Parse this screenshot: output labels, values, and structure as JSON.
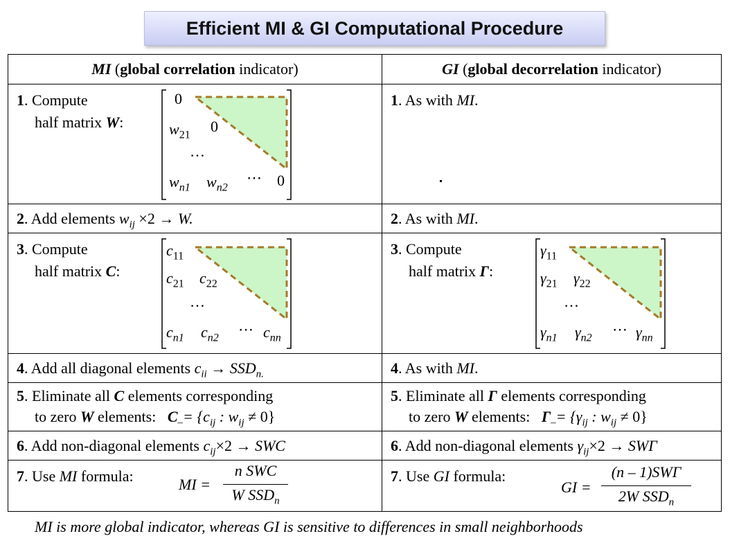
{
  "title": "Efficient MI & GI Computational Procedure",
  "headers": {
    "mi_abbr": "MI",
    "mi_open": " (",
    "mi_bold": "global correlation",
    "mi_rest": " indicator)",
    "gi_abbr": "GI",
    "gi_open": " (",
    "gi_bold": "global decorrelation",
    "gi_rest": " indicator)"
  },
  "steps": {
    "s1_mi_num": "1",
    "s1_mi_a": ". Compute",
    "s1_mi_b": "half matrix ",
    "s1_mi_sym": "W",
    "s1_mi_colon": ":",
    "s1_gi": ". As with ",
    "s1_gi_ref": "MI",
    "s1_gi_end": ".",
    "s2_mi": ". Add elements ",
    "s2_mi_w": "w",
    "s2_mi_sub": "ij",
    "s2_mi_end": " ×2 → ",
    "s2_mi_res": "W.",
    "s2_gi": ". As with ",
    "s2_gi_ref": "MI",
    "s2_gi_end": ".",
    "s3_mi_a": ". Compute",
    "s3_mi_b": "half matrix ",
    "s3_mi_sym": "C",
    "s3_mi_colon": ":",
    "s3_gi_a": ". Compute",
    "s3_gi_b": "half matrix ",
    "s3_gi_sym": "Γ",
    "s3_gi_colon": ":",
    "s4_mi": ". Add all diagonal elements ",
    "s4_mi_c": "c",
    "s4_mi_sub": "ii",
    "s4_mi_arrow": " → ",
    "s4_mi_ssd": "SSD",
    "s4_mi_ssd_sub": "n.",
    "s4_gi": ". As with ",
    "s4_gi_ref": "MI",
    "s4_gi_end": ".",
    "s5_mi_a": ". Eliminate all ",
    "s5_mi_sym": "C",
    "s5_mi_a2": " elements  corresponding",
    "s5_mi_b": "to zero ",
    "s5_mi_w": "W",
    "s5_mi_b2": " elements:",
    "s5_mi_eq": "= {c",
    "s5_mi_eq_sub": "ij",
    "s5_mi_eq2": " : w",
    "s5_mi_eq2_sub": "ij",
    "s5_mi_eq3": " ≠ 0}",
    "s5_mi_c": "C",
    "s5_mi_c_sub": "–",
    "s5_gi_a": ". Eliminate all ",
    "s5_gi_sym": "Γ",
    "s5_gi_a2": " elements  corresponding",
    "s5_gi_b": "to zero ",
    "s5_gi_w": "W",
    "s5_gi_b2": " elements:",
    "s5_gi_g": "Γ",
    "s5_gi_g_sub": "–",
    "s5_gi_eq": "= {γ",
    "s5_gi_eq_sub": "ij",
    "s5_gi_eq2": " : w",
    "s5_gi_eq2_sub": "ij",
    "s5_gi_eq3": " ≠ 0}",
    "s6_mi": ". Add non-diagonal elements ",
    "s6_mi_c": "c",
    "s6_mi_sub": "ij",
    "s6_mi_end": "×2 → ",
    "s6_mi_res": "SWC",
    "s6_gi": ". Add non-diagonal elements ",
    "s6_gi_g": "γ",
    "s6_gi_sub": "ij",
    "s6_gi_end": "×2 → ",
    "s6_gi_res": "SWΓ",
    "s7_mi": ". Use ",
    "s7_mi_ref": "MI",
    "s7_mi_end": " formula:",
    "s7_mi_lhs": "MI =",
    "s7_mi_num": "n SWC",
    "s7_mi_den": "W SSD",
    "s7_mi_den_sub": "n",
    "s7_gi": ". Use ",
    "s7_gi_ref": "GI",
    "s7_gi_end": " formula:",
    "s7_gi_lhs": "GI =",
    "s7_gi_num": "(n – 1)SWΓ",
    "s7_gi_den": "2W SSD",
    "s7_gi_den_sub": "n"
  },
  "nums": [
    "1",
    "2",
    "3",
    "4",
    "5",
    "6",
    "7"
  ],
  "matrix_w": {
    "a11": "0",
    "w21": "w",
    "w21_sub": "21",
    "a22": "0",
    "dots": "…",
    "wn1": "w",
    "wn1_sub": "n1",
    "wn2": "w",
    "wn2_sub": "n2",
    "cdots": "⋯",
    "ann": "0"
  },
  "matrix_c": {
    "c11": "c",
    "c11_sub": "11",
    "c21": "c",
    "c21_sub": "21",
    "c22": "c",
    "c22_sub": "22",
    "dots": "…",
    "cn1": "c",
    "cn1_sub": "n1",
    "cn2": "c",
    "cn2_sub": "n2",
    "cdots": "⋯",
    "cnn": "c",
    "cnn_sub": "nn"
  },
  "matrix_g": {
    "g11": "γ",
    "g11_sub": "11",
    "g21": "γ",
    "g21_sub": "21",
    "g22": "γ",
    "g22_sub": "22",
    "dots": "…",
    "gn1": "γ",
    "gn1_sub": "n1",
    "gn2": "γ",
    "gn2_sub": "n2",
    "cdots": "⋯",
    "gnn": "γ",
    "gnn_sub": "nn"
  },
  "bottom_line": "MI is more global indicator, whereas GI is sensitive to differences in small neighborhoods",
  "colors": {
    "triangle_fill": "#ccf5c8",
    "triangle_stroke": "#a57a2a"
  }
}
